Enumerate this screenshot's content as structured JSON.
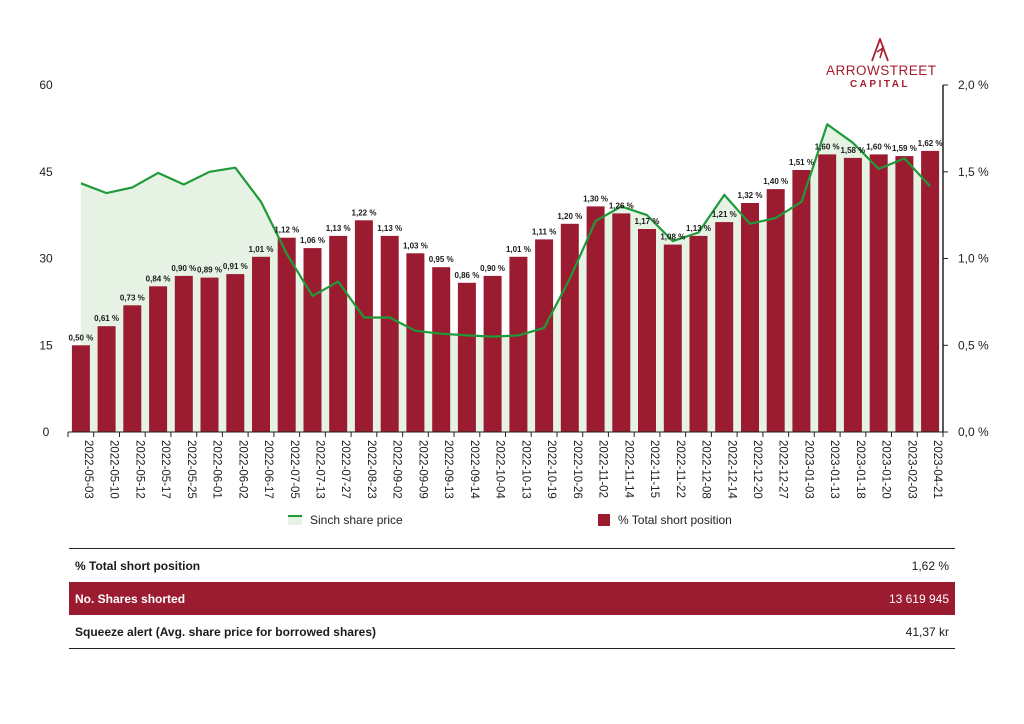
{
  "brand": {
    "name": "ARROWSTREET",
    "sub": "CAPITAL",
    "color": "#a51d31"
  },
  "legend": {
    "line_label": "Sinch share price",
    "bar_label": "% Total short position"
  },
  "summary": {
    "rows": [
      {
        "label": "% Total short position",
        "value": "1,62 %"
      },
      {
        "label": "No. Shares shorted",
        "value": "13 619 945"
      },
      {
        "label": "Squeeze alert (Avg. share price for borrowed shares)",
        "value": "41,37 kr"
      }
    ]
  },
  "chart_data": {
    "type": "bar",
    "categories": [
      "2022-05-03",
      "2022-05-10",
      "2022-05-12",
      "2022-05-17",
      "2022-05-25",
      "2022-06-01",
      "2022-06-02",
      "2022-06-17",
      "2022-07-05",
      "2022-07-13",
      "2022-07-27",
      "2022-08-23",
      "2022-09-02",
      "2022-09-09",
      "2022-09-13",
      "2022-09-14",
      "2022-10-04",
      "2022-10-13",
      "2022-10-19",
      "2022-10-26",
      "2022-11-02",
      "2022-11-14",
      "2022-11-15",
      "2022-11-22",
      "2022-12-08",
      "2022-12-14",
      "2022-12-20",
      "2022-12-27",
      "2023-01-03",
      "2023-01-13",
      "2023-01-18",
      "2023-01-20",
      "2023-02-03",
      "2023-04-21"
    ],
    "series": [
      {
        "name": "% Total short position",
        "axis": "right",
        "color": "#9b1b30",
        "values": [
          0.5,
          0.61,
          0.73,
          0.84,
          0.9,
          0.89,
          0.91,
          1.01,
          1.12,
          1.06,
          1.13,
          1.22,
          1.13,
          1.03,
          0.95,
          0.86,
          0.9,
          1.01,
          1.11,
          1.2,
          1.3,
          1.26,
          1.17,
          1.08,
          1.13,
          1.21,
          1.32,
          1.4,
          1.51,
          1.6,
          1.58,
          1.6,
          1.59,
          1.62
        ],
        "labels": [
          "0,50 %",
          "0,61 %",
          "0,73 %",
          "0,84 %",
          "0,90 %",
          "0,89 %",
          "0,91 %",
          "1,01 %",
          "1,12 %",
          "1,06 %",
          "1,13 %",
          "1,22 %",
          "1,13 %",
          "1,03 %",
          "0,95 %",
          "0,86 %",
          "0,90 %",
          "1,01 %",
          "1,11 %",
          "1,20 %",
          "1,30 %",
          "1,26 %",
          "1,17 %",
          "1,08 %",
          "1,13 %",
          "1,21 %",
          "1,32 %",
          "1,40 %",
          "1,51 %",
          "1,60 %",
          "1,58 %",
          "1,60 %",
          "1,59 %",
          "1,62 %"
        ]
      },
      {
        "name": "Sinch share price",
        "axis": "left",
        "color": "#1f9a38",
        "fill": "#e6f3e4",
        "values": [
          43,
          41.3,
          42.3,
          44.8,
          42.8,
          45,
          45.7,
          39.8,
          30.8,
          23.5,
          26,
          19.8,
          19.8,
          17.5,
          17,
          16.7,
          16.5,
          16.7,
          18,
          26.5,
          36.5,
          39,
          37.5,
          33,
          34.5,
          41,
          36,
          37,
          39.8,
          53.2,
          50,
          45.5,
          47.3,
          42.5
        ]
      }
    ],
    "y_left": {
      "ylim": [
        0,
        60
      ],
      "ticks": [
        "0",
        "15",
        "30",
        "45",
        "60"
      ]
    },
    "y_right": {
      "ylim": [
        0,
        2.0
      ],
      "ticks": [
        "0,0 %",
        "0,5 %",
        "1,0 %",
        "1,5 %",
        "2,0 %"
      ]
    },
    "grid": false,
    "legend_position": "bottom"
  }
}
